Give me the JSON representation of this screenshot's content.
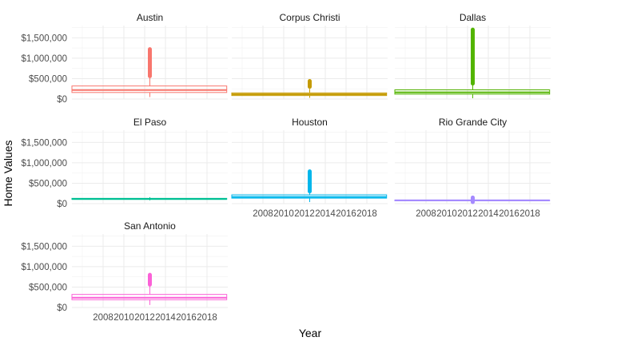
{
  "chart_data": {
    "type": "boxplot",
    "xlabel": "Year",
    "ylabel": "Home Values",
    "ylim": [
      0,
      1800000
    ],
    "yticks": [
      0,
      500000,
      1000000,
      1500000
    ],
    "ytick_labels": [
      "$0",
      "$500,000",
      "$1,000,000",
      "$1,500,000"
    ],
    "xlim": [
      2005,
      2020
    ],
    "xticks": [
      2008,
      2010,
      2012,
      2014,
      2016,
      2018
    ],
    "xtick_labels": [
      "2008",
      "2010",
      "2012",
      "2014",
      "2016",
      "2018"
    ],
    "grid": true,
    "legend": "none",
    "facets": [
      {
        "name": "Austin",
        "color": "#F8766D",
        "box_x": 2012.5,
        "x_range": [
          2005,
          2019.9
        ],
        "q1": 160000,
        "median": 220000,
        "q3": 320000,
        "whisker_low": 50000,
        "whisker_high": 560000,
        "outlier_range": [
          560000,
          1220000
        ]
      },
      {
        "name": "Corpus Christi",
        "color": "#C49A00",
        "box_x": 2012.5,
        "x_range": [
          2005,
          2019.9
        ],
        "q1": 85000,
        "median": 115000,
        "q3": 150000,
        "whisker_low": 30000,
        "whisker_high": 250000,
        "outlier_range": [
          300000,
          440000
        ]
      },
      {
        "name": "Dallas",
        "color": "#53B400",
        "box_x": 2012.5,
        "x_range": [
          2005,
          2019.9
        ],
        "q1": 120000,
        "median": 165000,
        "q3": 225000,
        "whisker_low": 20000,
        "whisker_high": 380000,
        "outlier_range": [
          380000,
          1700000
        ]
      },
      {
        "name": "El Paso",
        "color": "#00C094",
        "box_x": 2012.5,
        "x_range": [
          2005,
          2019.9
        ],
        "q1": 105000,
        "median": 115000,
        "q3": 130000,
        "whisker_low": 80000,
        "whisker_high": 160000,
        "outlier_range": null
      },
      {
        "name": "Houston",
        "color": "#00B6EB",
        "box_x": 2012.5,
        "x_range": [
          2005,
          2019.9
        ],
        "q1": 135000,
        "median": 165000,
        "q3": 215000,
        "whisker_low": 40000,
        "whisker_high": 300000,
        "outlier_range": [
          300000,
          790000
        ]
      },
      {
        "name": "Rio Grande City",
        "color": "#A58AFF",
        "box_x": 2012.5,
        "x_range": [
          2005,
          2019.9
        ],
        "q1": 70000,
        "median": 80000,
        "q3": 90000,
        "whisker_low": 40000,
        "whisker_high": 110000,
        "outlier_range": [
          40000,
          150000
        ]
      },
      {
        "name": "San Antonio",
        "color": "#FB61D7",
        "box_x": 2012.5,
        "x_range": [
          2005,
          2019.9
        ],
        "q1": 190000,
        "median": 240000,
        "q3": 320000,
        "whisker_low": 60000,
        "whisker_high": 560000,
        "outlier_range": [
          560000,
          800000
        ]
      }
    ]
  }
}
